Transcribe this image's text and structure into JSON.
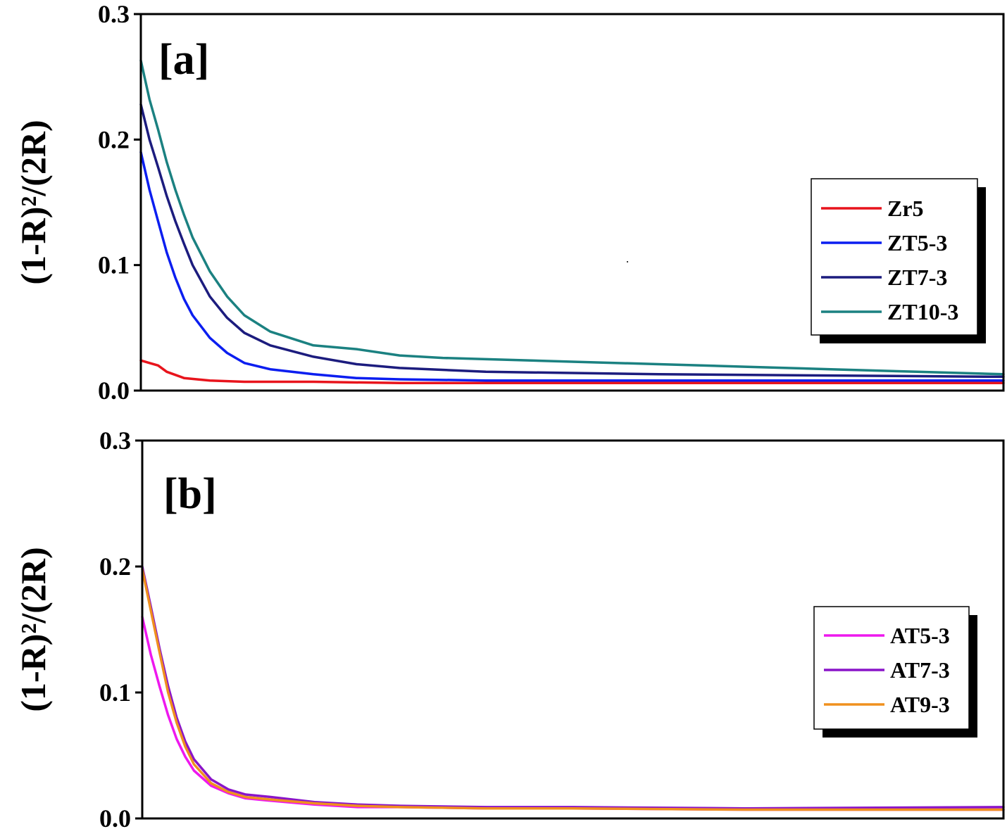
{
  "chart_data": [
    {
      "type": "line",
      "panel_label": "[a]",
      "ylabel": "(1-R)²/(2R)",
      "ylim": [
        0,
        0.3
      ],
      "yticks": [
        "0.0",
        "0.1",
        "0.2",
        "0.3"
      ],
      "xlim": [
        0,
        1
      ],
      "legend_position": "right",
      "series": [
        {
          "name": "Zr5",
          "color": "#e8141c",
          "x": [
            0,
            0.01,
            0.02,
            0.03,
            0.05,
            0.08,
            0.12,
            0.2,
            0.3,
            0.5,
            0.7,
            0.9,
            1.0
          ],
          "y": [
            0.024,
            0.022,
            0.02,
            0.015,
            0.01,
            0.008,
            0.007,
            0.007,
            0.006,
            0.006,
            0.006,
            0.006,
            0.006
          ]
        },
        {
          "name": "ZT5-3",
          "color": "#0b1ef0",
          "x": [
            0,
            0.01,
            0.02,
            0.03,
            0.04,
            0.05,
            0.06,
            0.08,
            0.1,
            0.12,
            0.15,
            0.2,
            0.25,
            0.3,
            0.4,
            0.5,
            0.7,
            1.0
          ],
          "y": [
            0.19,
            0.16,
            0.135,
            0.11,
            0.09,
            0.073,
            0.06,
            0.042,
            0.03,
            0.022,
            0.017,
            0.013,
            0.01,
            0.009,
            0.008,
            0.008,
            0.008,
            0.008
          ]
        },
        {
          "name": "ZT7-3",
          "color": "#1c1c7e",
          "x": [
            0,
            0.01,
            0.02,
            0.03,
            0.04,
            0.05,
            0.06,
            0.08,
            0.1,
            0.12,
            0.15,
            0.2,
            0.25,
            0.3,
            0.4,
            0.5,
            0.6,
            0.8,
            1.0
          ],
          "y": [
            0.228,
            0.2,
            0.178,
            0.155,
            0.135,
            0.117,
            0.1,
            0.075,
            0.058,
            0.046,
            0.036,
            0.027,
            0.021,
            0.018,
            0.015,
            0.014,
            0.013,
            0.012,
            0.011
          ]
        },
        {
          "name": "ZT10-3",
          "color": "#1b8181",
          "x": [
            0,
            0.01,
            0.02,
            0.03,
            0.04,
            0.05,
            0.06,
            0.08,
            0.1,
            0.12,
            0.15,
            0.2,
            0.25,
            0.3,
            0.35,
            0.4,
            0.5,
            0.6,
            0.7,
            0.8,
            0.9,
            1.0
          ],
          "y": [
            0.263,
            0.232,
            0.208,
            0.182,
            0.16,
            0.14,
            0.122,
            0.095,
            0.075,
            0.06,
            0.047,
            0.036,
            0.033,
            0.028,
            0.026,
            0.025,
            0.023,
            0.021,
            0.019,
            0.017,
            0.015,
            0.013
          ]
        }
      ]
    },
    {
      "type": "line",
      "panel_label": "[b]",
      "ylabel": "(1-R)²/(2R)",
      "ylim": [
        0,
        0.3
      ],
      "yticks": [
        "0.0",
        "0.1",
        "0.2",
        "0.3"
      ],
      "xlim": [
        0,
        1
      ],
      "legend_position": "right",
      "series": [
        {
          "name": "AT5-3",
          "color": "#ee18ee",
          "x": [
            0,
            0.01,
            0.02,
            0.03,
            0.04,
            0.05,
            0.06,
            0.08,
            0.1,
            0.12,
            0.15,
            0.2,
            0.25,
            0.3,
            0.4,
            0.5,
            0.7,
            1.0
          ],
          "y": [
            0.16,
            0.13,
            0.105,
            0.082,
            0.063,
            0.049,
            0.038,
            0.026,
            0.02,
            0.016,
            0.014,
            0.011,
            0.009,
            0.009,
            0.008,
            0.008,
            0.007,
            0.007
          ]
        },
        {
          "name": "AT7-3",
          "color": "#8a14c8",
          "x": [
            0,
            0.01,
            0.02,
            0.03,
            0.04,
            0.05,
            0.06,
            0.08,
            0.1,
            0.12,
            0.15,
            0.2,
            0.25,
            0.3,
            0.4,
            0.5,
            0.7,
            1.0
          ],
          "y": [
            0.2,
            0.168,
            0.135,
            0.105,
            0.08,
            0.061,
            0.047,
            0.031,
            0.023,
            0.019,
            0.017,
            0.013,
            0.011,
            0.01,
            0.009,
            0.009,
            0.008,
            0.009
          ]
        },
        {
          "name": "AT9-3",
          "color": "#f0901e",
          "x": [
            0,
            0.01,
            0.02,
            0.03,
            0.04,
            0.05,
            0.06,
            0.08,
            0.1,
            0.12,
            0.15,
            0.2,
            0.25,
            0.3,
            0.4,
            0.5,
            0.7,
            1.0
          ],
          "y": [
            0.198,
            0.165,
            0.132,
            0.1,
            0.076,
            0.057,
            0.043,
            0.028,
            0.021,
            0.017,
            0.015,
            0.012,
            0.01,
            0.009,
            0.008,
            0.008,
            0.007,
            0.007
          ]
        }
      ]
    }
  ]
}
